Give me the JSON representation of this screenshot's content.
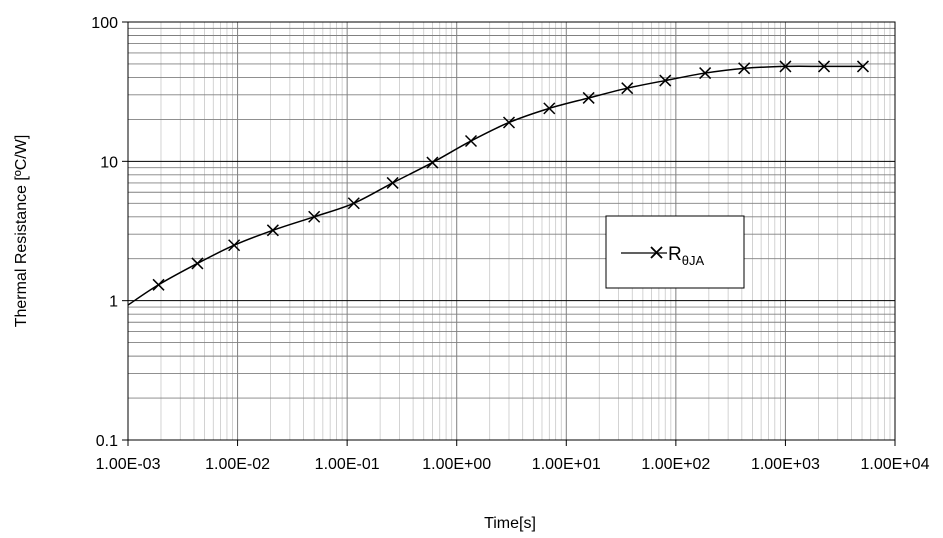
{
  "chart_data": {
    "type": "line",
    "xlabel": "Time[s]",
    "ylabel": "Thermal Resistance [ºC/W]",
    "x_scale": "log",
    "y_scale": "log",
    "xlim": [
      0.001,
      10000
    ],
    "ylim": [
      0.1,
      100
    ],
    "x_tick_labels": [
      "1.00E-03",
      "1.00E-02",
      "1.00E-01",
      "1.00E+00",
      "1.00E+01",
      "1.00E+02",
      "1.00E+03",
      "1.00E+04"
    ],
    "y_tick_labels": [
      "0.1",
      "1",
      "10",
      "100"
    ],
    "grid": true,
    "legend": {
      "position": "right",
      "entry_main": "R",
      "entry_sub": "θJA"
    },
    "series": [
      {
        "marker": "x",
        "curve": {
          "x": [
            0.001,
            0.0019,
            0.0043,
            0.0093,
            0.021,
            0.05,
            0.115,
            0.26,
            0.6,
            1.35,
            3.0,
            7.0,
            16,
            36,
            80,
            185,
            420,
            1000,
            2250,
            5100
          ],
          "y": [
            0.93,
            1.3,
            1.85,
            2.5,
            3.2,
            4.0,
            5.0,
            7.0,
            9.8,
            14,
            19,
            24,
            28.5,
            33.5,
            38,
            43,
            46.5,
            48,
            48,
            48
          ]
        },
        "markers": {
          "x": [
            0.0019,
            0.0043,
            0.0093,
            0.021,
            0.05,
            0.115,
            0.26,
            0.6,
            1.35,
            3.0,
            7.0,
            16,
            36,
            80,
            185,
            420,
            1000,
            2250,
            5100
          ],
          "y": [
            1.3,
            1.85,
            2.5,
            3.2,
            4.0,
            5.0,
            7.0,
            9.8,
            14,
            19,
            24,
            28.5,
            33.5,
            38,
            43,
            46.5,
            48,
            48,
            48
          ]
        }
      }
    ]
  }
}
